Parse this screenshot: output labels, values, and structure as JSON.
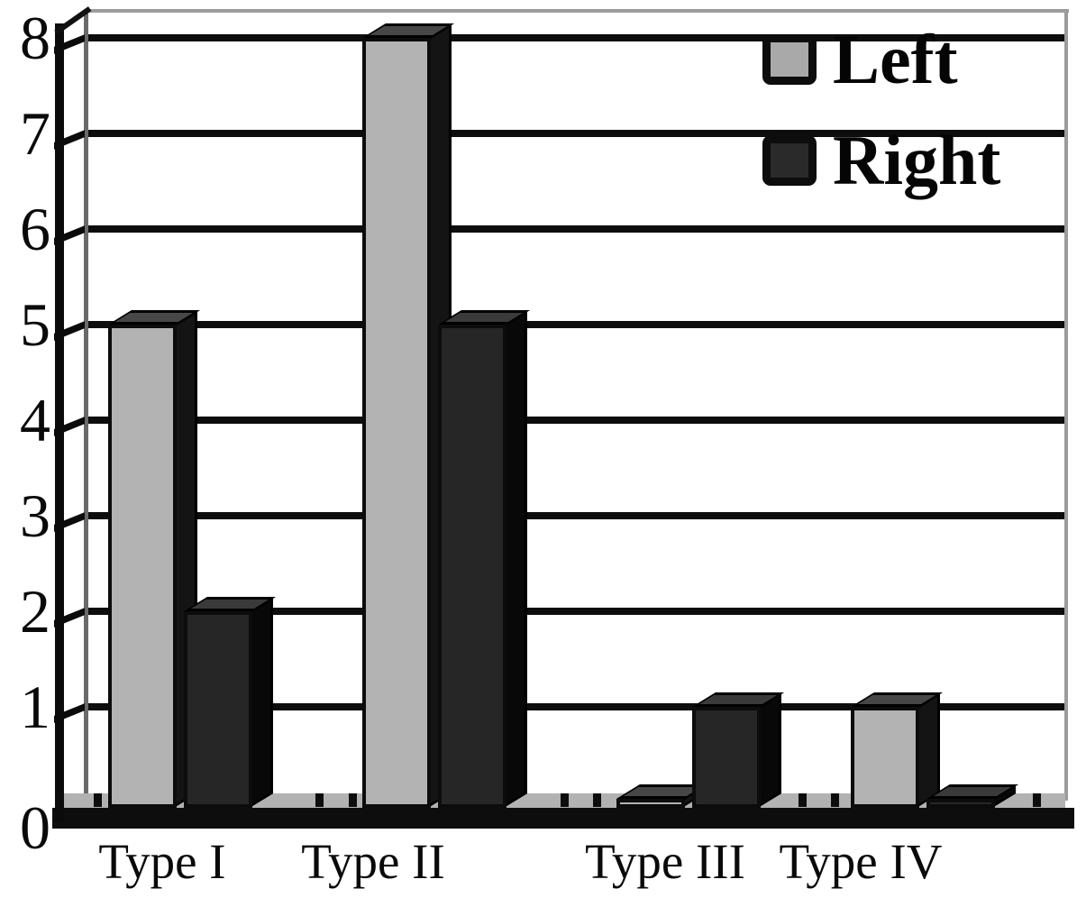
{
  "chart_data": {
    "type": "bar",
    "style": "3d-clustered",
    "title": "",
    "xlabel": "",
    "ylabel": "",
    "categories": [
      "Type I",
      "Type II",
      "Type III",
      "Type IV"
    ],
    "series": [
      {
        "name": "Left",
        "color": "#b3b3b3",
        "values": [
          5,
          8,
          0,
          1
        ]
      },
      {
        "name": "Right",
        "color": "#262626",
        "values": [
          2,
          5,
          1,
          0
        ]
      }
    ],
    "ylim": [
      0,
      8
    ],
    "yticks": [
      0,
      1,
      2,
      3,
      4,
      5,
      6,
      7,
      8
    ],
    "grid": "horizontal",
    "legend_position": "top-right",
    "colors": {
      "gridline": "#0d0d0d",
      "axis": "#0b0b0b",
      "floor": "#b2b2b2",
      "background": "#ffffff",
      "legend_swatch_left": "#a9a9a9",
      "legend_swatch_right": "#2a2a2a"
    }
  }
}
